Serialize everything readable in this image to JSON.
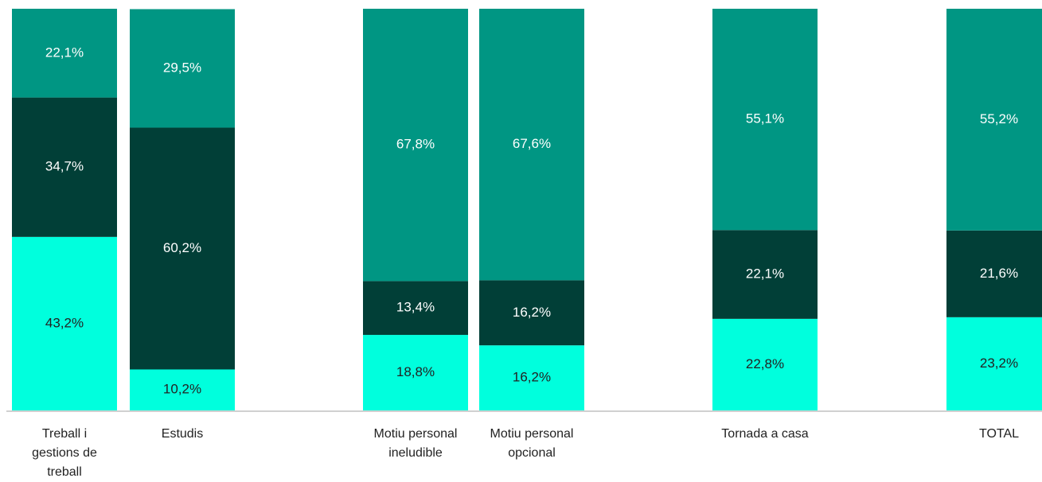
{
  "chart_data": {
    "type": "stacked_bar",
    "categories": [
      "Treball i gestions de treball",
      "Estudis",
      "Motiu personal ineludible",
      "Motiu personal opcional",
      "Tornada a casa",
      "TOTAL"
    ],
    "series": [
      {
        "color": "#00ffdd",
        "values": [
          43.2,
          10.2,
          18.8,
          16.2,
          22.8,
          23.2
        ],
        "value_labels": [
          "43,2%",
          "10,2%",
          "18,8%",
          "16,2%",
          "22,8%",
          "23,2%"
        ]
      },
      {
        "color": "#013f37",
        "values": [
          34.7,
          60.2,
          13.4,
          16.2,
          22.1,
          21.6
        ],
        "value_labels": [
          "34,7%",
          "60,2%",
          "13,4%",
          "16,2%",
          "22,1%",
          "21,6%"
        ]
      },
      {
        "color": "#009683",
        "values": [
          22.1,
          29.5,
          67.8,
          67.6,
          55.1,
          55.2
        ],
        "value_labels": [
          "22,1%",
          "29,5%",
          "67,8%",
          "67,6%",
          "55,1%",
          "55,2%"
        ]
      }
    ],
    "ylim": [
      0,
      100
    ]
  }
}
